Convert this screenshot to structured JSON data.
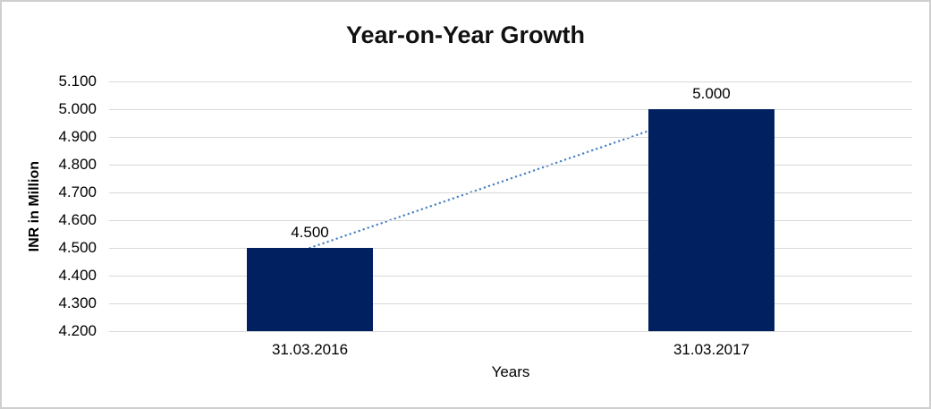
{
  "chart_data": {
    "type": "bar",
    "title": "Year-on-Year Growth",
    "xlabel": "Years",
    "ylabel": "INR in Million",
    "categories": [
      "31.03.2016",
      "31.03.2017"
    ],
    "values": [
      4.5,
      5.0
    ],
    "data_labels": [
      "4.500",
      "5.000"
    ],
    "y_ticks": [
      "5.100",
      "5.000",
      "4.900",
      "4.800",
      "4.700",
      "4.600",
      "4.500",
      "4.400",
      "4.300",
      "4.200"
    ],
    "ylim": [
      4.2,
      5.1
    ],
    "grid": true,
    "legend": "none",
    "bar_color": "#002060",
    "gridline_color": "#d9d9d9",
    "trendline": {
      "style": "dotted",
      "color": "#4a82c4",
      "from": 4.5,
      "to": 5.0
    }
  }
}
